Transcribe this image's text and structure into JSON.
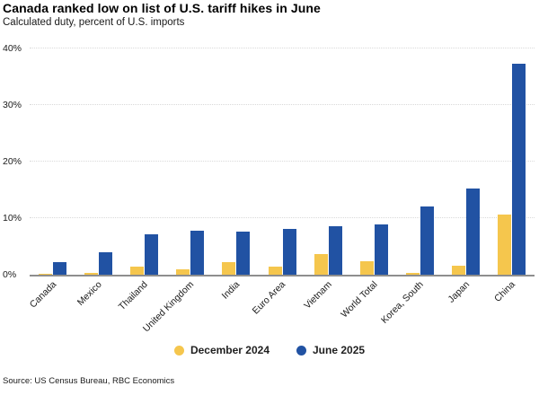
{
  "header": {
    "title": "Canada ranked low on list of U.S. tariff hikes in June",
    "subtitle": "Calculated duty, percent of U.S. imports"
  },
  "chart_data": {
    "type": "bar",
    "title": "Canada ranked low on list of U.S. tariff hikes in June",
    "subtitle": "Calculated duty, percent of U.S. imports",
    "categories": [
      "Canada",
      "Mexico",
      "Thailand",
      "United Kingdom",
      "India",
      "Euro Area",
      "Vietnam",
      "World Total",
      "Korea, South",
      "Japan",
      "China"
    ],
    "series": [
      {
        "name": "December 2024",
        "color": "#F5C64D",
        "values": [
          0.1,
          0.3,
          1.5,
          1.0,
          2.3,
          1.4,
          3.6,
          2.4,
          0.3,
          1.6,
          10.6
        ]
      },
      {
        "name": "June 2025",
        "color": "#2152A3",
        "values": [
          2.3,
          3.9,
          7.1,
          7.8,
          7.7,
          8.1,
          8.6,
          8.9,
          12.0,
          15.2,
          37.3
        ]
      }
    ],
    "xlabel": "",
    "ylabel": "Calculated duty, percent of U.S. imports",
    "ylim": [
      0,
      40
    ],
    "yticks": [
      0,
      10,
      20,
      30,
      40
    ],
    "ytick_labels": [
      "0%",
      "10%",
      "20%",
      "30%",
      "40%"
    ],
    "grid": true,
    "legend_position": "bottom"
  },
  "legend": {
    "items": [
      {
        "label": "December 2024",
        "color": "#F5C64D"
      },
      {
        "label": "June 2025",
        "color": "#2152A3"
      }
    ]
  },
  "source": "Source: US Census Bureau, RBC Economics"
}
